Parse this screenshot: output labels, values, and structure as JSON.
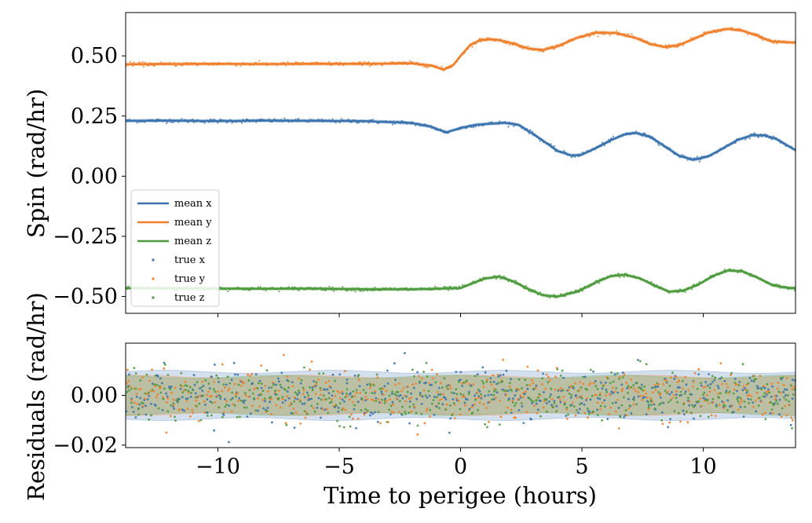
{
  "chart_data": [
    {
      "type": "line",
      "ylabel": "Spin (rad/hr)",
      "xlabel": "",
      "xlim": [
        -13.8,
        13.8
      ],
      "ylim": [
        -0.57,
        0.68
      ],
      "x_ticks": [
        -10,
        -5,
        0,
        5,
        10
      ],
      "y_ticks": [
        0.5,
        0.25,
        0.0,
        -0.25,
        -0.5
      ],
      "y_tick_labels": [
        "0.50",
        "0.25",
        "0.00",
        "−0.25",
        "−0.50"
      ],
      "legend_position": "lower-left",
      "grid": false,
      "series": [
        {
          "name": "mean x",
          "color": "#3a73ad",
          "x": [
            -13.8,
            -12,
            -10,
            -8,
            -6,
            -4,
            -2,
            -1.2,
            -0.6,
            0,
            0.6,
            1.2,
            1.8,
            2.4,
            3,
            3.5,
            4,
            4.6,
            5,
            5.6,
            6.2,
            6.8,
            7.2,
            7.8,
            8.4,
            9,
            9.6,
            10.2,
            10.8,
            11.4,
            12,
            12.5,
            13,
            13.8
          ],
          "values": [
            0.23,
            0.231,
            0.229,
            0.231,
            0.23,
            0.229,
            0.221,
            0.205,
            0.182,
            0.2,
            0.213,
            0.218,
            0.222,
            0.213,
            0.175,
            0.14,
            0.105,
            0.085,
            0.09,
            0.118,
            0.15,
            0.175,
            0.18,
            0.165,
            0.125,
            0.085,
            0.068,
            0.082,
            0.115,
            0.15,
            0.17,
            0.17,
            0.155,
            0.108
          ]
        },
        {
          "name": "mean y",
          "color": "#f07f2b",
          "x": [
            -13.8,
            -12,
            -10,
            -8,
            -6,
            -4,
            -2,
            -1.2,
            -0.7,
            -0.3,
            0,
            0.4,
            0.8,
            1.2,
            1.6,
            2.2,
            2.8,
            3.4,
            4,
            4.8,
            5.6,
            6.4,
            7.2,
            7.8,
            8.4,
            9,
            9.6,
            10.2,
            11,
            11.6,
            12.2,
            12.8,
            13.8
          ],
          "values": [
            0.465,
            0.466,
            0.467,
            0.466,
            0.467,
            0.467,
            0.469,
            0.46,
            0.443,
            0.462,
            0.5,
            0.545,
            0.565,
            0.57,
            0.565,
            0.55,
            0.53,
            0.525,
            0.54,
            0.575,
            0.597,
            0.595,
            0.575,
            0.55,
            0.537,
            0.545,
            0.57,
            0.597,
            0.612,
            0.605,
            0.585,
            0.56,
            0.555
          ]
        },
        {
          "name": "mean z",
          "color": "#4c9a3c",
          "x": [
            -13.8,
            -12,
            -10,
            -8,
            -6,
            -4,
            -2,
            -1,
            0,
            0.5,
            1,
            1.6,
            2.2,
            2.8,
            3.4,
            4,
            4.8,
            5.6,
            6.2,
            6.8,
            7.4,
            8,
            8.6,
            9.2,
            9.8,
            10.4,
            11,
            11.6,
            12.2,
            12.8,
            13.3,
            13.8
          ],
          "values": [
            -0.465,
            -0.466,
            -0.467,
            -0.468,
            -0.467,
            -0.47,
            -0.47,
            -0.468,
            -0.465,
            -0.445,
            -0.425,
            -0.418,
            -0.438,
            -0.47,
            -0.495,
            -0.5,
            -0.48,
            -0.44,
            -0.415,
            -0.41,
            -0.425,
            -0.455,
            -0.48,
            -0.475,
            -0.45,
            -0.415,
            -0.392,
            -0.395,
            -0.42,
            -0.45,
            -0.462,
            -0.466
          ]
        }
      ],
      "scatter_series": [
        {
          "name": "true x",
          "color": "#3a73ad"
        },
        {
          "name": "true y",
          "color": "#f07f2b"
        },
        {
          "name": "true z",
          "color": "#4c9a3c"
        }
      ]
    },
    {
      "type": "scatter",
      "ylabel": "Residuals (rad/hr)",
      "xlabel": "Time to perigee (hours)",
      "xlim": [
        -13.8,
        13.8
      ],
      "ylim": [
        -0.021,
        0.021
      ],
      "x_ticks": [
        -10,
        -5,
        0,
        5,
        10
      ],
      "x_tick_labels": [
        "−10",
        "−5",
        "0",
        "5",
        "10"
      ],
      "y_ticks": [
        0.0,
        -0.02
      ],
      "y_tick_labels": [
        "0.00",
        "−0.02"
      ],
      "grid": false,
      "bands": [
        {
          "name": "x",
          "color": "#3a73ad",
          "lower": -0.0095,
          "upper": 0.0095
        },
        {
          "name": "y",
          "color": "#f07f2b",
          "lower": -0.0075,
          "upper": 0.0075
        },
        {
          "name": "z",
          "color": "#4c9a3c",
          "lower": -0.0075,
          "upper": 0.0075
        }
      ],
      "residual_spread": 0.005
    }
  ]
}
